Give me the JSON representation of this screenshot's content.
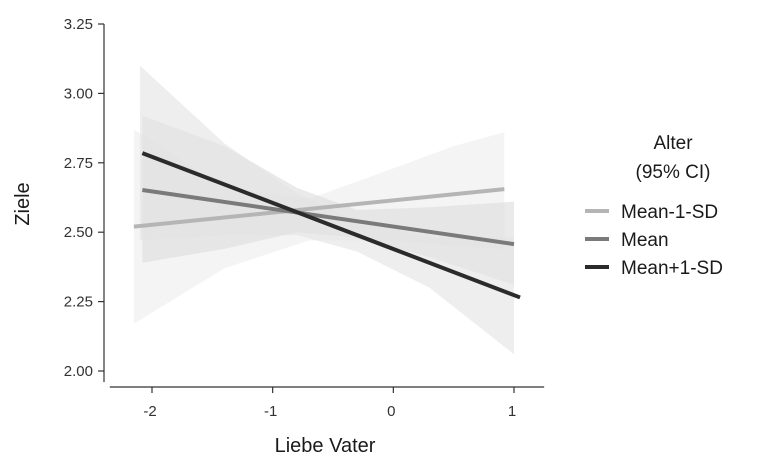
{
  "chart_data": {
    "type": "line",
    "xlabel": "Liebe Vater",
    "ylabel": "Ziele",
    "xlim": [
      -2.35,
      1.25
    ],
    "ylim": [
      1.96,
      3.25
    ],
    "xticks": [
      -2,
      -1,
      0,
      1
    ],
    "xtick_labels": [
      "-2",
      "-1",
      "0",
      "1"
    ],
    "yticks": [
      2.0,
      2.25,
      2.5,
      2.75,
      3.0,
      3.25
    ],
    "ytick_labels": [
      "2.00",
      "2.25",
      "2.50",
      "2.75",
      "3.00",
      "3.25"
    ],
    "grid": false,
    "legend": {
      "title_line1": "Alter",
      "title_line2": "(95% CI)",
      "placement": "right"
    },
    "series": [
      {
        "name": "Mean-1-SD",
        "color": "#b5b5b5",
        "band_color": "#ececec",
        "x": [
          -2.15,
          0.92
        ],
        "y": [
          2.52,
          2.655
        ],
        "ci_x": [
          -2.15,
          -1.4,
          -0.7,
          0,
          0.5,
          0.92
        ],
        "ci_lower": [
          2.17,
          2.37,
          2.47,
          2.47,
          2.45,
          2.44
        ],
        "ci_upper": [
          2.87,
          2.66,
          2.62,
          2.73,
          2.81,
          2.86
        ]
      },
      {
        "name": "Mean",
        "color": "#7a7a7a",
        "band_color": "#dcdcdc",
        "x": [
          -2.08,
          1.0
        ],
        "y": [
          2.652,
          2.457
        ],
        "ci_x": [
          -2.08,
          -1.4,
          -0.8,
          -0.3,
          0.3,
          1.0
        ],
        "ci_lower": [
          2.39,
          2.44,
          2.5,
          2.48,
          2.41,
          2.31
        ],
        "ci_upper": [
          2.92,
          2.81,
          2.66,
          2.58,
          2.59,
          2.61
        ]
      },
      {
        "name": "Mean+1-SD",
        "color": "#2b2b2b",
        "band_color": "#e3e3e3",
        "x": [
          -2.08,
          1.05
        ],
        "y": [
          2.785,
          2.265
        ],
        "ci_x": [
          -2.1,
          -1.4,
          -0.8,
          -0.3,
          0.3,
          1.0
        ],
        "ci_lower": [
          2.47,
          2.49,
          2.49,
          2.43,
          2.3,
          2.06
        ],
        "ci_upper": [
          3.1,
          2.82,
          2.64,
          2.54,
          2.48,
          2.48
        ]
      }
    ]
  }
}
